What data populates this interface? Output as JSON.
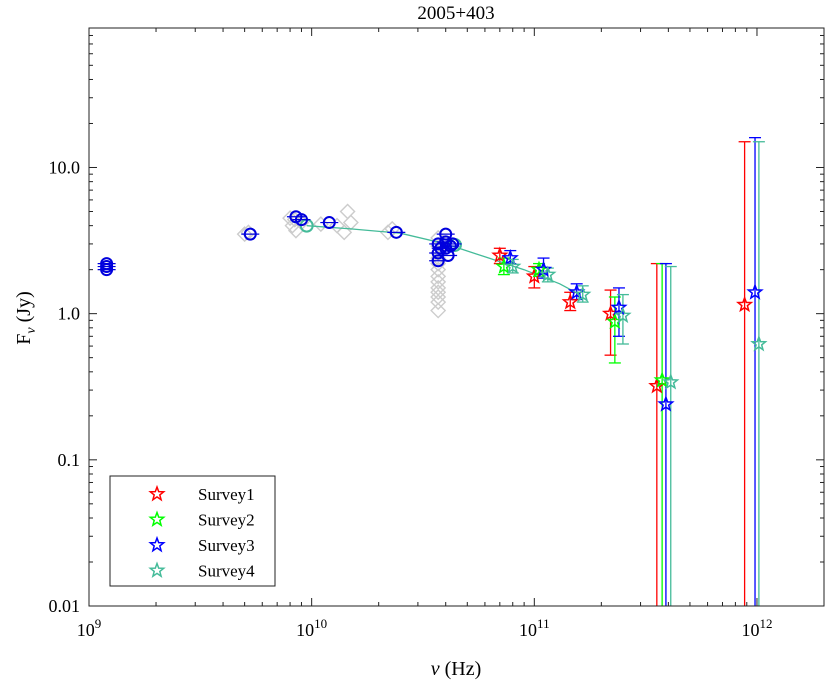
{
  "chart_data": {
    "type": "scatter",
    "title": "2005+403",
    "xlabel_symbol": "ν",
    "xlabel_unit": " (Hz)",
    "ylabel_main": "F",
    "ylabel_sub": "ν",
    "ylabel_unit": " (Jy)",
    "xscale": "log",
    "yscale": "log",
    "xlim": [
      1000000000.0,
      2000000000000.0
    ],
    "ylim": [
      0.01,
      90
    ],
    "x_ticks": [
      {
        "value": 1000000000.0,
        "base": "10",
        "exp": "9"
      },
      {
        "value": 10000000000.0,
        "base": "10",
        "exp": "10"
      },
      {
        "value": 100000000000.0,
        "base": "10",
        "exp": "11"
      },
      {
        "value": 1000000000000.0,
        "base": "10",
        "exp": "12"
      }
    ],
    "y_ticks": [
      {
        "value": 0.01,
        "label": "0.01"
      },
      {
        "value": 0.1,
        "label": "0.1"
      },
      {
        "value": 1,
        "label": "1.0"
      },
      {
        "value": 10,
        "label": "10.0"
      }
    ],
    "legend_position": "bottom-left",
    "colors": {
      "survey1": "#ff0000",
      "survey2": "#00ff00",
      "survey3": "#0000ff",
      "survey4": "#44bb99",
      "circles": "#0000dd",
      "archival": "#cccccc",
      "model": "#44bb99",
      "axis": "#222222"
    },
    "archival_points": [
      [
        5000000000.0,
        3.5
      ],
      [
        5200000000.0,
        3.6
      ],
      [
        8000000000.0,
        4.5
      ],
      [
        8200000000.0,
        4.0
      ],
      [
        8500000000.0,
        3.7
      ],
      [
        8400000000.0,
        4.4
      ],
      [
        9000000000.0,
        4.2
      ],
      [
        11000000000.0,
        4.1
      ],
      [
        13000000000.0,
        4.0
      ],
      [
        14000000000.0,
        3.6
      ],
      [
        14500000000.0,
        5.0
      ],
      [
        15000000000.0,
        4.2
      ],
      [
        22000000000.0,
        3.6
      ],
      [
        23000000000.0,
        3.8
      ],
      [
        37000000000.0,
        3.3
      ],
      [
        37000000000.0,
        2.9
      ],
      [
        37000000000.0,
        2.6
      ],
      [
        37000000000.0,
        2.4
      ],
      [
        37000000000.0,
        2.2
      ],
      [
        37000000000.0,
        2.0
      ],
      [
        37000000000.0,
        1.8
      ],
      [
        37000000000.0,
        1.65
      ],
      [
        37000000000.0,
        1.5
      ],
      [
        37000000000.0,
        1.4
      ],
      [
        37000000000.0,
        1.3
      ],
      [
        37000000000.0,
        1.2
      ],
      [
        37000000000.0,
        1.05
      ],
      [
        39000000000.0,
        3.0
      ],
      [
        38000000000.0,
        2.8
      ]
    ],
    "circle_points": [
      [
        1200000000.0,
        2.2
      ],
      [
        1200000000.0,
        2.1
      ],
      [
        1200000000.0,
        2.0
      ],
      [
        5300000000.0,
        3.5
      ],
      [
        8500000000.0,
        4.6
      ],
      [
        9000000000.0,
        4.4
      ],
      [
        12000000000.0,
        4.2
      ],
      [
        24000000000.0,
        3.6
      ],
      [
        37000000000.0,
        2.3
      ],
      [
        37000000000.0,
        2.6
      ],
      [
        37000000000.0,
        3.0
      ],
      [
        38000000000.0,
        2.8
      ],
      [
        40000000000.0,
        3.5
      ],
      [
        40000000000.0,
        3.1
      ],
      [
        40000000000.0,
        2.8
      ],
      [
        41000000000.0,
        2.5
      ],
      [
        42000000000.0,
        2.9
      ],
      [
        43000000000.0,
        3.0
      ]
    ],
    "model_line": {
      "x": [
        9500000000.0,
        15000000000.0,
        25000000000.0,
        40000000000.0,
        60000000000.0,
        90000000000.0,
        130000000000.0,
        160000000000.0
      ],
      "y": [
        4.0,
        3.8,
        3.55,
        3.0,
        2.45,
        2.0,
        1.6,
        1.35
      ]
    },
    "series": [
      {
        "name": "Survey1",
        "color_key": "survey1",
        "points": [
          {
            "x": 70000000000.0,
            "y": 2.5,
            "lo": 2.2,
            "hi": 2.8
          },
          {
            "x": 100000000000.0,
            "y": 1.8,
            "lo": 1.5,
            "hi": 2.1
          },
          {
            "x": 145000000000.0,
            "y": 1.2,
            "lo": 1.05,
            "hi": 1.4
          },
          {
            "x": 220000000000.0,
            "y": 1.0,
            "lo": 0.52,
            "hi": 1.45
          },
          {
            "x": 355000000000.0,
            "y": 0.32,
            "lo": 0.01,
            "hi": 2.2
          },
          {
            "x": 880000000000.0,
            "y": 1.15,
            "lo": 0.01,
            "hi": 15
          }
        ]
      },
      {
        "name": "Survey2",
        "color_key": "survey2",
        "points": [
          {
            "x": 73000000000.0,
            "y": 2.1,
            "lo": 1.85,
            "hi": 2.4
          },
          {
            "x": 105000000000.0,
            "y": 2.0,
            "lo": 1.8,
            "hi": 2.2
          },
          {
            "x": 230000000000.0,
            "y": 0.88,
            "lo": 0.46,
            "hi": 1.3
          },
          {
            "x": 375000000000.0,
            "y": 0.35,
            "lo": 0.01,
            "hi": 2.2
          }
        ]
      },
      {
        "name": "Survey3",
        "color_key": "survey3",
        "points": [
          {
            "x": 78000000000.0,
            "y": 2.4,
            "lo": 2.2,
            "hi": 2.7
          },
          {
            "x": 110000000000.0,
            "y": 2.0,
            "lo": 1.75,
            "hi": 2.4
          },
          {
            "x": 155000000000.0,
            "y": 1.4,
            "lo": 1.25,
            "hi": 1.6
          },
          {
            "x": 240000000000.0,
            "y": 1.1,
            "lo": 0.7,
            "hi": 1.5
          },
          {
            "x": 390000000000.0,
            "y": 0.24,
            "lo": 0.01,
            "hi": 2.2
          },
          {
            "x": 980000000000.0,
            "y": 1.4,
            "lo": 0.01,
            "hi": 16
          }
        ]
      },
      {
        "name": "Survey4",
        "color_key": "survey4",
        "points": [
          {
            "x": 80000000000.0,
            "y": 2.1,
            "lo": 1.9,
            "hi": 2.35
          },
          {
            "x": 115000000000.0,
            "y": 1.85,
            "lo": 1.65,
            "hi": 2.05
          },
          {
            "x": 165000000000.0,
            "y": 1.35,
            "lo": 1.2,
            "hi": 1.55
          },
          {
            "x": 250000000000.0,
            "y": 0.97,
            "lo": 0.62,
            "hi": 1.35
          },
          {
            "x": 410000000000.0,
            "y": 0.34,
            "lo": 0.01,
            "hi": 2.1
          },
          {
            "x": 1020000000000.0,
            "y": 0.62,
            "lo": 0.01,
            "hi": 15
          }
        ]
      }
    ]
  }
}
